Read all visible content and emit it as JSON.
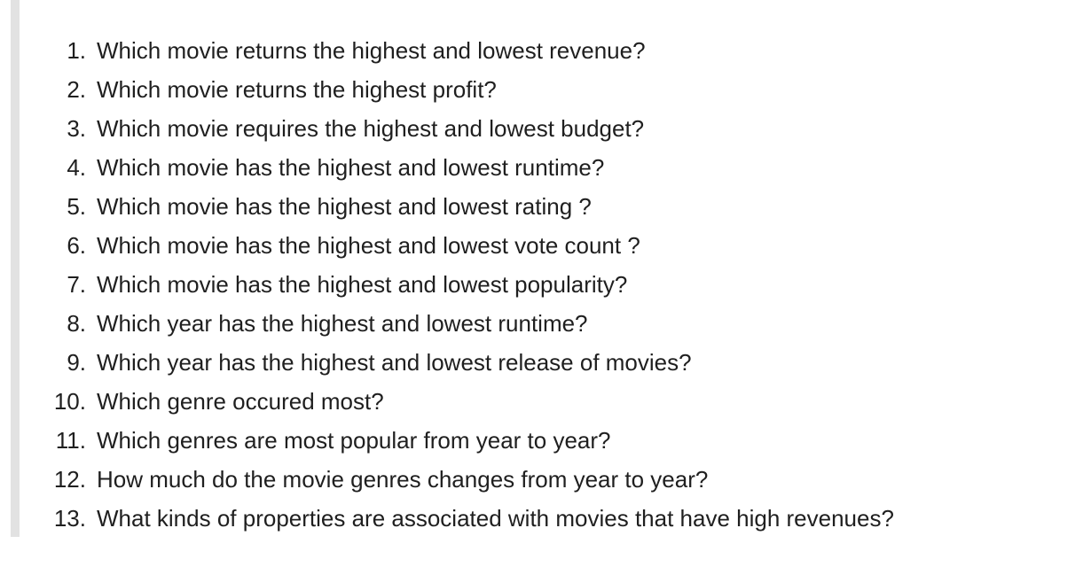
{
  "questions": [
    {
      "number": "1.",
      "text": "Which movie returns the highest and lowest revenue?"
    },
    {
      "number": "2.",
      "text": "Which movie returns the highest profit?"
    },
    {
      "number": "3.",
      "text": "Which movie requires the highest and lowest budget?"
    },
    {
      "number": "4.",
      "text": "Which movie has the highest and lowest runtime?"
    },
    {
      "number": "5.",
      "text": "Which movie has the highest and lowest rating ?"
    },
    {
      "number": "6.",
      "text": "Which movie has the highest and lowest vote count ?"
    },
    {
      "number": "7.",
      "text": "Which movie has the highest and lowest popularity?"
    },
    {
      "number": "8.",
      "text": "Which year has the highest and lowest runtime?"
    },
    {
      "number": "9.",
      "text": "Which year has the highest and lowest release of movies?"
    },
    {
      "number": "10.",
      "text": "Which genre occured most?"
    },
    {
      "number": "11.",
      "text": "Which genres are most popular from year to year?"
    },
    {
      "number": "12.",
      "text": "How much do the movie genres changes from year to year?"
    },
    {
      "number": "13.",
      "text": "What kinds of properties are associated with movies that have high revenues?"
    }
  ]
}
